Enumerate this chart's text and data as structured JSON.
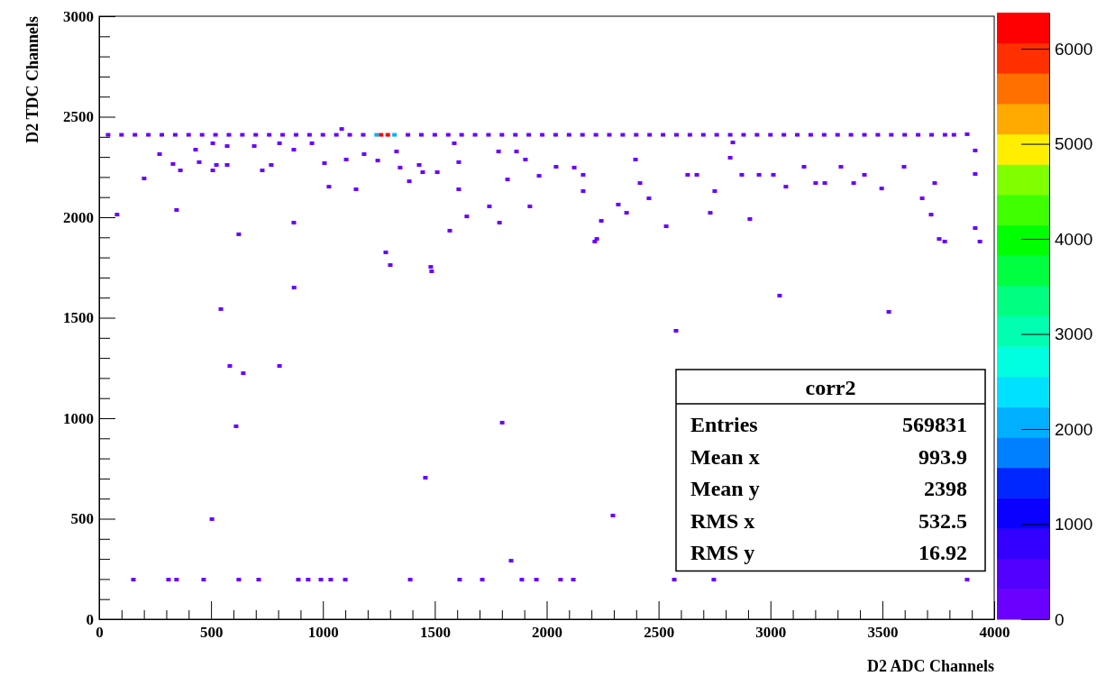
{
  "chart_data": {
    "type": "scatter",
    "xlabel": "D2 ADC Channels",
    "ylabel": "D2 TDC Channels",
    "xlim": [
      0,
      4000
    ],
    "ylim": [
      0,
      3000
    ],
    "xticks": [
      0,
      {
        "value": 100,
        "label": null
      },
      {
        "value": 200,
        "label": null
      },
      {
        "value": 300,
        "label": null
      },
      {
        "value": 400,
        "label": null
      },
      500,
      {
        "value": 600,
        "label": null
      },
      {
        "value": 700,
        "label": null
      },
      {
        "value": 800,
        "label": null
      },
      {
        "value": 900,
        "label": null
      },
      1000,
      {
        "value": 1100,
        "label": null
      },
      {
        "value": 1200,
        "label": null
      },
      {
        "value": 1300,
        "label": null
      },
      {
        "value": 1400,
        "label": null
      },
      1500,
      {
        "value": 1600,
        "label": null
      },
      {
        "value": 1700,
        "label": null
      },
      {
        "value": 1800,
        "label": null
      },
      {
        "value": 1900,
        "label": null
      },
      2000,
      {
        "value": 2100,
        "label": null
      },
      {
        "value": 2200,
        "label": null
      },
      {
        "value": 2300,
        "label": null
      },
      {
        "value": 2400,
        "label": null
      },
      2500,
      {
        "value": 2600,
        "label": null
      },
      {
        "value": 2700,
        "label": null
      },
      {
        "value": 2800,
        "label": null
      },
      {
        "value": 2900,
        "label": null
      },
      3000,
      {
        "value": 3100,
        "label": null
      },
      {
        "value": 3200,
        "label": null
      },
      {
        "value": 3300,
        "label": null
      },
      {
        "value": 3400,
        "label": null
      },
      3500,
      {
        "value": 3600,
        "label": null
      },
      {
        "value": 3700,
        "label": null
      },
      {
        "value": 3800,
        "label": null
      },
      {
        "value": 3900,
        "label": null
      },
      4000
    ],
    "yticks": [
      0,
      {
        "value": 100,
        "label": null
      },
      {
        "value": 200,
        "label": null
      },
      {
        "value": 300,
        "label": null
      },
      {
        "value": 400,
        "label": null
      },
      500,
      {
        "value": 600,
        "label": null
      },
      {
        "value": 700,
        "label": null
      },
      {
        "value": 800,
        "label": null
      },
      {
        "value": 900,
        "label": null
      },
      1000,
      {
        "value": 1100,
        "label": null
      },
      {
        "value": 1200,
        "label": null
      },
      {
        "value": 1300,
        "label": null
      },
      {
        "value": 1400,
        "label": null
      },
      1500,
      {
        "value": 1600,
        "label": null
      },
      {
        "value": 1700,
        "label": null
      },
      {
        "value": 1800,
        "label": null
      },
      {
        "value": 1900,
        "label": null
      },
      2000,
      {
        "value": 2100,
        "label": null
      },
      {
        "value": 2200,
        "label": null
      },
      {
        "value": 2300,
        "label": null
      },
      {
        "value": 2400,
        "label": null
      },
      2500,
      {
        "value": 2600,
        "label": null
      },
      {
        "value": 2700,
        "label": null
      },
      {
        "value": 2800,
        "label": null
      },
      {
        "value": 2900,
        "label": null
      },
      3000
    ],
    "clim": [
      0,
      6380
    ],
    "cticks": [
      0,
      1000,
      2000,
      3000,
      4000,
      5000,
      6000
    ],
    "marker": "square",
    "grid": false,
    "annotations": [
      "corr2",
      "Entries 569831",
      "Mean x 993.9",
      "Mean y 2398",
      "RMS x 532.5",
      "RMS y 16.92"
    ],
    "series": [
      {
        "x": [
          1240,
          1320
        ],
        "values": [
          2410,
          2410
        ],
        "cvalues": [
          2200,
          2200
        ]
      },
      {
        "x": [
          1260,
          1290
        ],
        "values": [
          2410,
          2410
        ],
        "cvalues": [
          6300,
          6300
        ]
      },
      {
        "x": [
          40,
          100,
          160,
          220,
          280,
          340,
          400,
          460,
          520,
          580,
          640,
          700,
          760,
          820,
          880,
          940,
          1000,
          1060,
          1120,
          1180,
          1380,
          1440,
          1500,
          1560,
          1620,
          1680,
          1740,
          1800,
          1860,
          1920,
          1980,
          2040,
          2100,
          2160,
          2220,
          2280,
          2340,
          2400,
          2460,
          2520,
          2580,
          2640,
          2700,
          2760,
          2820,
          2880,
          2940,
          3000,
          3060,
          3120,
          3180,
          3240,
          3300,
          3360,
          3420,
          3480,
          3540,
          3600,
          3660,
          3720,
          3780,
          3820,
          3879
        ],
        "values": [
          2410,
          2410,
          2410,
          2410,
          2410,
          2410,
          2410,
          2410,
          2410,
          2410,
          2410,
          2410,
          2410,
          2410,
          2410,
          2410,
          2410,
          2410,
          2410,
          2410,
          2410,
          2410,
          2410,
          2410,
          2410,
          2410,
          2410,
          2410,
          2410,
          2410,
          2410,
          2410,
          2410,
          2410,
          2410,
          2410,
          2410,
          2410,
          2410,
          2410,
          2410,
          2410,
          2410,
          2410,
          2410,
          2410,
          2410,
          2410,
          2410,
          2410,
          2410,
          2410,
          2410,
          2410,
          2410,
          2410,
          2410,
          2410,
          2410,
          2410,
          2410,
          2410,
          2413
        ],
        "cvalues": [
          100,
          100,
          100,
          100,
          100,
          100,
          100,
          100,
          100,
          100,
          100,
          100,
          100,
          100,
          100,
          100,
          100,
          100,
          100,
          100,
          100,
          100,
          100,
          100,
          100,
          100,
          100,
          100,
          100,
          100,
          100,
          100,
          100,
          100,
          100,
          100,
          100,
          100,
          100,
          100,
          100,
          100,
          100,
          100,
          100,
          100,
          100,
          100,
          100,
          100,
          100,
          100,
          100,
          100,
          100,
          100,
          100,
          100,
          100,
          100,
          100,
          100,
          100
        ]
      },
      {
        "x": [
          80,
          201,
          270,
          330,
          363,
          346,
          431,
          447,
          508,
          508,
          524,
          572,
          572,
          624,
          693,
          729,
          769,
          806,
          870,
          870,
          951,
          1007,
          1027,
          1084,
          1104,
          1148,
          1184,
          1245,
          1329,
          1345,
          1386,
          1430,
          1446,
          1511,
          1567,
          1587,
          1607,
          1607,
          1643,
          1744,
          1785,
          1789,
          1825,
          1865,
          1905,
          1925,
          1966,
          2042,
          2123,
          2163,
          2163,
          2244,
          2224,
          2320,
          2357,
          2397,
          2417,
          2457,
          2534,
          2630,
          2671,
          2731,
          2751,
          2820,
          2832,
          2872,
          2908,
          2949,
          3013,
          3069,
          3150,
          3202,
          3243,
          3315,
          3372,
          3420,
          3497,
          3597,
          3678,
          3718,
          3734,
          3754,
          3915,
          3915,
          3915,
          544,
          871,
          584,
          644,
          806,
          612,
          504,
          1281,
          1301,
          1482,
          1486,
          2578,
          3041,
          3529,
          1801,
          1458,
          2296,
          1841,
          2215,
          3779,
          3936,
          153,
          310,
          346,
          467,
          624,
          713,
          890,
          934,
          991,
          1035,
          1100,
          1390,
          1611,
          1712,
          1889,
          1954,
          2062,
          2119,
          2570,
          2747,
          3879
        ],
        "values": [
          2013,
          2193,
          2314,
          2265,
          2233,
          2036,
          2336,
          2274,
          2368,
          2233,
          2260,
          2354,
          2260,
          1915,
          2354,
          2233,
          2260,
          2368,
          2336,
          1973,
          2368,
          2269,
          2152,
          2439,
          2287,
          2139,
          2314,
          2282,
          2327,
          2247,
          2179,
          2260,
          2224,
          2224,
          1933,
          2368,
          2274,
          2139,
          2004,
          2054,
          2327,
          1973,
          2188,
          2327,
          2287,
          2054,
          2206,
          2251,
          2247,
          2211,
          2130,
          1982,
          1892,
          2063,
          2022,
          2287,
          2170,
          2094,
          1955,
          2211,
          2211,
          2022,
          2130,
          2296,
          2372,
          2211,
          1991,
          2211,
          2211,
          2152,
          2251,
          2170,
          2170,
          2251,
          2170,
          2211,
          2143,
          2251,
          2094,
          2013,
          2170,
          1892,
          1946,
          2215,
          2332,
          1543,
          1650,
          1260,
          1224,
          1260,
          960,
          498,
          1825,
          1762,
          1753,
          1731,
          1435,
          1610,
          1529,
          978,
          704,
          516,
          291,
          1879,
          1879,
          1879,
          197,
          197,
          197,
          197,
          197,
          197,
          197,
          197,
          197,
          197,
          197,
          197,
          197,
          197,
          197,
          197,
          197,
          197,
          197,
          197,
          197
        ],
        "cvalues": [
          100,
          100,
          100,
          100,
          100,
          100,
          100,
          100,
          100,
          100,
          100,
          100,
          100,
          100,
          100,
          100,
          100,
          100,
          100,
          100,
          100,
          100,
          100,
          100,
          100,
          100,
          100,
          100,
          100,
          100,
          100,
          100,
          100,
          100,
          100,
          100,
          100,
          100,
          100,
          100,
          100,
          100,
          100,
          100,
          100,
          100,
          100,
          100,
          100,
          100,
          100,
          100,
          100,
          100,
          100,
          100,
          100,
          100,
          100,
          100,
          100,
          100,
          100,
          100,
          100,
          100,
          100,
          100,
          100,
          100,
          100,
          100,
          100,
          100,
          100,
          100,
          100,
          100,
          100,
          100,
          100,
          100,
          100,
          100,
          100,
          100,
          100,
          100,
          100,
          100,
          100,
          100,
          100,
          100,
          100,
          100,
          100,
          100,
          100,
          100,
          100,
          100,
          100,
          100,
          100,
          100,
          100,
          100,
          100,
          100,
          100,
          100,
          100,
          100,
          100,
          100,
          100,
          100,
          100,
          100,
          100,
          100,
          100,
          100,
          100,
          100,
          100
        ]
      }
    ]
  }
}
